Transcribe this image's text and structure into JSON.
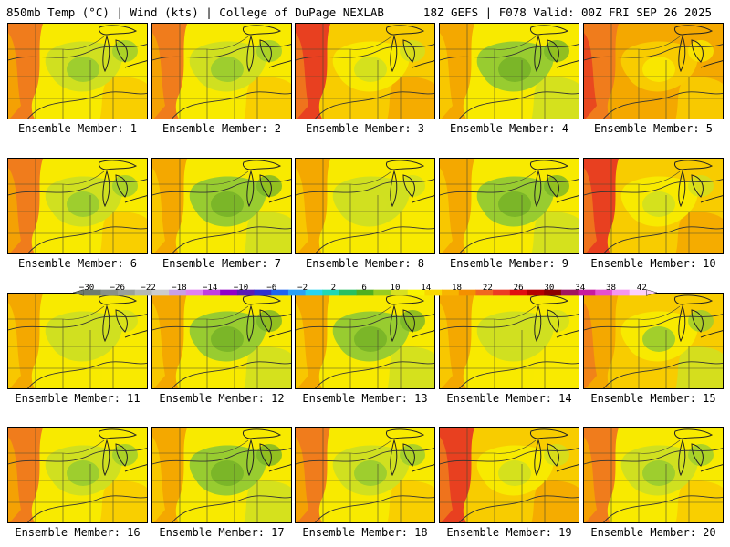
{
  "header": {
    "left": "850mb Temp (°C) | Wind (kts) | College of DuPage NEXLAB",
    "right": "18Z GEFS | F078 Valid: 00Z FRI SEP 26 2025"
  },
  "caption_prefix": "Ensemble Member: ",
  "members": [
    {
      "number": "1",
      "caption": "Ensemble Member: 1",
      "pattern": "west-warm"
    },
    {
      "number": "2",
      "caption": "Ensemble Member: 2",
      "pattern": "west-warm"
    },
    {
      "number": "3",
      "caption": "Ensemble Member: 3",
      "pattern": "hot-west"
    },
    {
      "number": "4",
      "caption": "Ensemble Member: 4",
      "pattern": "cool-center"
    },
    {
      "number": "5",
      "caption": "Ensemble Member: 5",
      "pattern": "hot-all"
    },
    {
      "number": "6",
      "caption": "Ensemble Member: 6",
      "pattern": "west-warm"
    },
    {
      "number": "7",
      "caption": "Ensemble Member: 7",
      "pattern": "cool-center"
    },
    {
      "number": "8",
      "caption": "Ensemble Member: 8",
      "pattern": "mild"
    },
    {
      "number": "9",
      "caption": "Ensemble Member: 9",
      "pattern": "cool-center"
    },
    {
      "number": "10",
      "caption": "Ensemble Member: 10",
      "pattern": "hot-west"
    },
    {
      "number": "11",
      "caption": "Ensemble Member: 11",
      "pattern": "mild"
    },
    {
      "number": "12",
      "caption": "Ensemble Member: 12",
      "pattern": "cool-center"
    },
    {
      "number": "13",
      "caption": "Ensemble Member: 13",
      "pattern": "cool-center"
    },
    {
      "number": "14",
      "caption": "Ensemble Member: 14",
      "pattern": "mild"
    },
    {
      "number": "15",
      "caption": "Ensemble Member: 15",
      "pattern": "cool-east"
    },
    {
      "number": "16",
      "caption": "Ensemble Member: 16",
      "pattern": "west-warm"
    },
    {
      "number": "17",
      "caption": "Ensemble Member: 17",
      "pattern": "cool-center"
    },
    {
      "number": "18",
      "caption": "Ensemble Member: 18",
      "pattern": "west-warm"
    },
    {
      "number": "19",
      "caption": "Ensemble Member: 19",
      "pattern": "hot-west"
    },
    {
      "number": "20",
      "caption": "Ensemble Member: 20",
      "pattern": "west-warm"
    }
  ],
  "colorbar": {
    "units": "°C",
    "labels": [
      "−30",
      "−26",
      "−22",
      "−18",
      "−14",
      "−10",
      "−6",
      "−2",
      "2",
      "6",
      "10",
      "14",
      "18",
      "22",
      "26",
      "30",
      "34",
      "38",
      "42"
    ],
    "colors": [
      "#6e7b6e",
      "#889088",
      "#9aa09a",
      "#b4b8b4",
      "#cccccc",
      "#c8a0e6",
      "#e080f0",
      "#c040e0",
      "#9000c8",
      "#5a1ab4",
      "#3030d0",
      "#1e64f0",
      "#2aa0f8",
      "#26d4f0",
      "#20d8b4",
      "#28c060",
      "#50b020",
      "#98cc20",
      "#d8e020",
      "#f8f400",
      "#f8d800",
      "#f8b400",
      "#f49000",
      "#f06820",
      "#ec3c24",
      "#e01010",
      "#b40000",
      "#8c0000",
      "#a01460",
      "#c81aa0",
      "#e650d0",
      "#f496f0",
      "#fcd0fc"
    ]
  },
  "palette": {
    "green_dark": "#78b428",
    "green": "#98cc30",
    "yellow_green": "#d0e020",
    "yellow": "#f8ea00",
    "yellow_orange": "#f8cc00",
    "orange": "#f4a800",
    "deep_orange": "#f07c1c",
    "red": "#e84020"
  }
}
